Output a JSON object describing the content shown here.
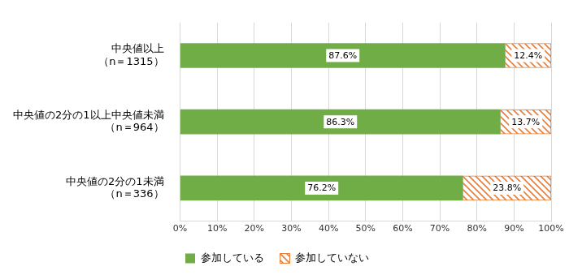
{
  "chart_data": {
    "type": "bar",
    "orientation": "horizontal",
    "stacked": true,
    "categories": [
      [
        "中央値以上",
        "（n＝1315）"
      ],
      [
        "中央値の2分の1以上中央値未満",
        "（n＝964）"
      ],
      [
        "中央値の2分の1未満",
        "（n＝336）"
      ]
    ],
    "series": [
      {
        "name": "参加している",
        "color": "#70ad47",
        "values": [
          87.6,
          86.3,
          76.2
        ],
        "value_labels": [
          "87.6%",
          "86.3%",
          "76.2%"
        ]
      },
      {
        "name": "参加していない",
        "color": "#ed7d31",
        "values": [
          12.4,
          13.7,
          23.8
        ],
        "value_labels": [
          "12.4%",
          "13.7%",
          "23.8%"
        ]
      }
    ],
    "xlim": [
      0,
      100
    ],
    "xticks": [
      {
        "value": 0,
        "label": "0%"
      },
      {
        "value": 10,
        "label": "10%"
      },
      {
        "value": 20,
        "label": "20%"
      },
      {
        "value": 30,
        "label": "30%"
      },
      {
        "value": 40,
        "label": "40%"
      },
      {
        "value": 50,
        "label": "50%"
      },
      {
        "value": 60,
        "label": "60%"
      },
      {
        "value": 70,
        "label": "70%"
      },
      {
        "value": 80,
        "label": "80%"
      },
      {
        "value": 90,
        "label": "90%"
      },
      {
        "value": 100,
        "label": "100%"
      }
    ],
    "grid": true,
    "legend": "bottom",
    "data_labels": true
  }
}
